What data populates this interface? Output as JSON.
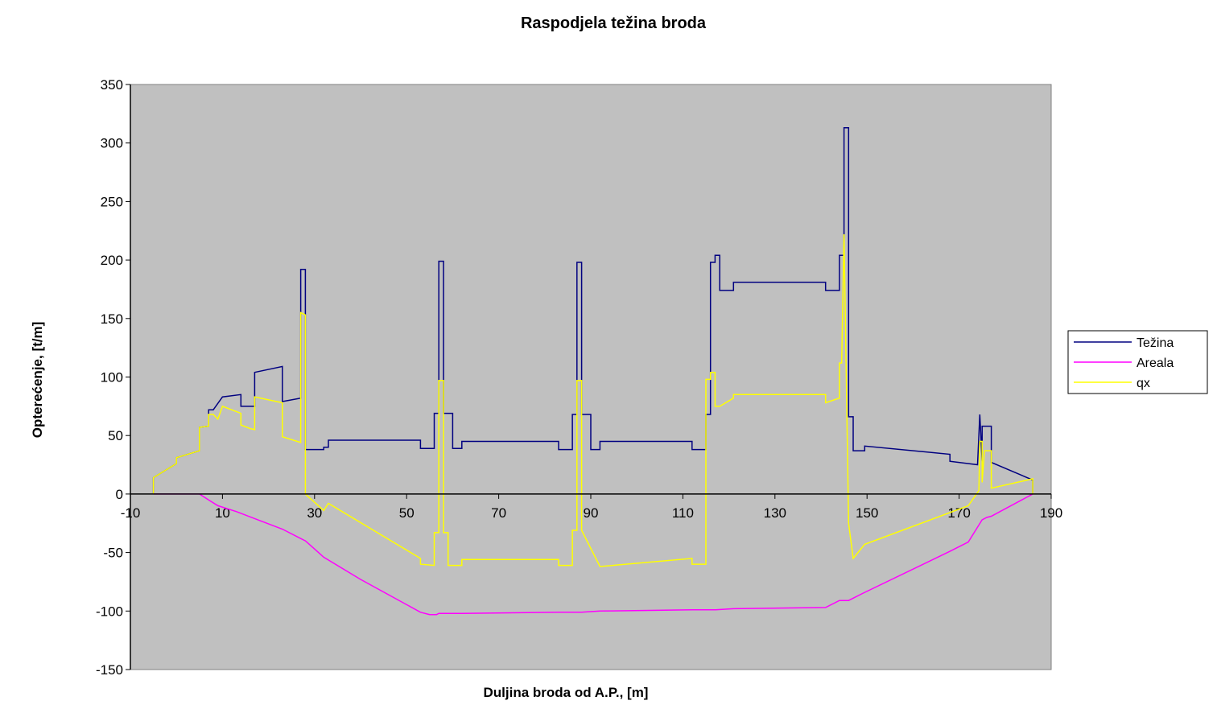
{
  "chart_data": {
    "type": "line",
    "title": "Raspodjela težina broda",
    "xlabel": "Duljina broda od A.P., [m]",
    "ylabel": "Opterećenje, [t/m]",
    "xlim": [
      -10,
      190
    ],
    "ylim": [
      -150,
      350
    ],
    "xticks": [
      -10,
      10,
      30,
      50,
      70,
      90,
      110,
      130,
      150,
      170,
      190
    ],
    "yticks": [
      -150,
      -100,
      -50,
      0,
      50,
      100,
      150,
      200,
      250,
      300,
      350
    ],
    "grid": false,
    "legend_position": "right",
    "plot_background": "#c0c0c0",
    "series": [
      {
        "name": "Težina",
        "color": "#000080",
        "x": [
          -5,
          -5,
          0,
          0,
          5,
          5,
          7,
          7,
          8,
          8,
          10,
          10,
          14,
          14,
          16,
          16,
          17,
          17,
          23,
          23,
          27,
          27,
          28,
          28,
          28.5,
          28.5,
          32,
          32,
          33,
          33,
          53,
          53,
          56,
          56,
          57,
          57,
          58,
          58,
          60,
          60,
          62,
          62,
          83,
          83,
          86,
          86,
          87,
          87,
          88,
          88,
          90,
          90,
          92,
          92,
          112,
          112,
          115,
          115,
          116,
          116,
          117,
          117,
          118,
          118,
          121,
          121,
          141,
          141,
          144,
          144,
          145,
          145,
          146,
          146,
          147,
          147,
          149.5,
          149.5,
          168,
          168,
          174,
          174,
          174.5,
          174.5,
          175,
          175,
          175.5,
          175.5,
          177,
          177,
          186,
          186
        ],
        "y": [
          0,
          14,
          26,
          31,
          37,
          57,
          58,
          72,
          72,
          72,
          83,
          83,
          85,
          75,
          75,
          75,
          75,
          104,
          109,
          79,
          82,
          192,
          192,
          38,
          38,
          38,
          38,
          40,
          40,
          46,
          46,
          39,
          39,
          69,
          69,
          199,
          199,
          69,
          69,
          39,
          39,
          45,
          45,
          38,
          38,
          68,
          68,
          198,
          198,
          68,
          68,
          38,
          38,
          45,
          45,
          38,
          38,
          68,
          68,
          198,
          198,
          204,
          204,
          174,
          174,
          181,
          181,
          174,
          174,
          204,
          204,
          313,
          313,
          66,
          66,
          37,
          37,
          41,
          34,
          28,
          25,
          25,
          68,
          68,
          28,
          58,
          58,
          58,
          58,
          27,
          12,
          0
        ]
      },
      {
        "name": "Areala",
        "color": "#ff00ff",
        "x": [
          -5,
          0,
          5,
          7,
          9,
          13,
          17,
          23,
          27,
          28,
          30,
          32,
          40,
          53,
          55,
          56.5,
          57,
          62,
          83,
          88,
          92,
          112,
          117,
          121,
          141,
          144,
          146,
          149,
          168,
          172,
          175,
          176,
          177,
          186
        ],
        "y": [
          0,
          0,
          0,
          -5,
          -10,
          -15,
          -21,
          -30,
          -38,
          -40,
          -47,
          -54,
          -73,
          -101,
          -103,
          -103,
          -102,
          -102,
          -101,
          -101,
          -100,
          -99,
          -99,
          -98,
          -97,
          -91,
          -91,
          -85,
          -49,
          -41,
          -22,
          -20,
          -19,
          0
        ]
      },
      {
        "name": "qx",
        "color": "#ffff00",
        "x": [
          -5,
          -5,
          0,
          0,
          5,
          5,
          7,
          7,
          8,
          8,
          9,
          9,
          10,
          10,
          14,
          14,
          16,
          16,
          17,
          17,
          23,
          23,
          27,
          27,
          28,
          28,
          32,
          33,
          53,
          53,
          56,
          56,
          57,
          57,
          58,
          58,
          59,
          59,
          62,
          62,
          83,
          83,
          86,
          86,
          87,
          87,
          88,
          88,
          92,
          112,
          112,
          115,
          115,
          116,
          116,
          117,
          117,
          118,
          118,
          121,
          121,
          141,
          141,
          144,
          144,
          144.5,
          145,
          145,
          146,
          146,
          147,
          149.5,
          149.5,
          172,
          174.3,
          174.5,
          175,
          175,
          175.5,
          175.5,
          177,
          177,
          186,
          186
        ],
        "y": [
          0,
          14,
          26,
          31,
          37,
          57,
          58,
          68,
          68,
          68,
          64,
          64,
          75,
          75,
          69,
          59,
          56,
          56,
          55,
          83,
          78,
          49,
          44,
          155,
          153,
          0,
          -14,
          -8,
          -55,
          -60,
          -61,
          -33,
          -33,
          97,
          97,
          -33,
          -33,
          -61,
          -61,
          -56,
          -56,
          -61,
          -61,
          -31,
          -31,
          97,
          97,
          -31,
          -62,
          -55,
          -60,
          -60,
          98,
          98,
          104,
          104,
          75,
          75,
          75,
          82,
          85,
          85,
          78,
          82,
          112,
          112,
          222,
          222,
          -25,
          -25,
          -55,
          -43,
          -43,
          -10,
          3,
          45,
          45,
          10,
          37,
          37,
          37,
          5,
          13,
          0
        ]
      }
    ]
  }
}
